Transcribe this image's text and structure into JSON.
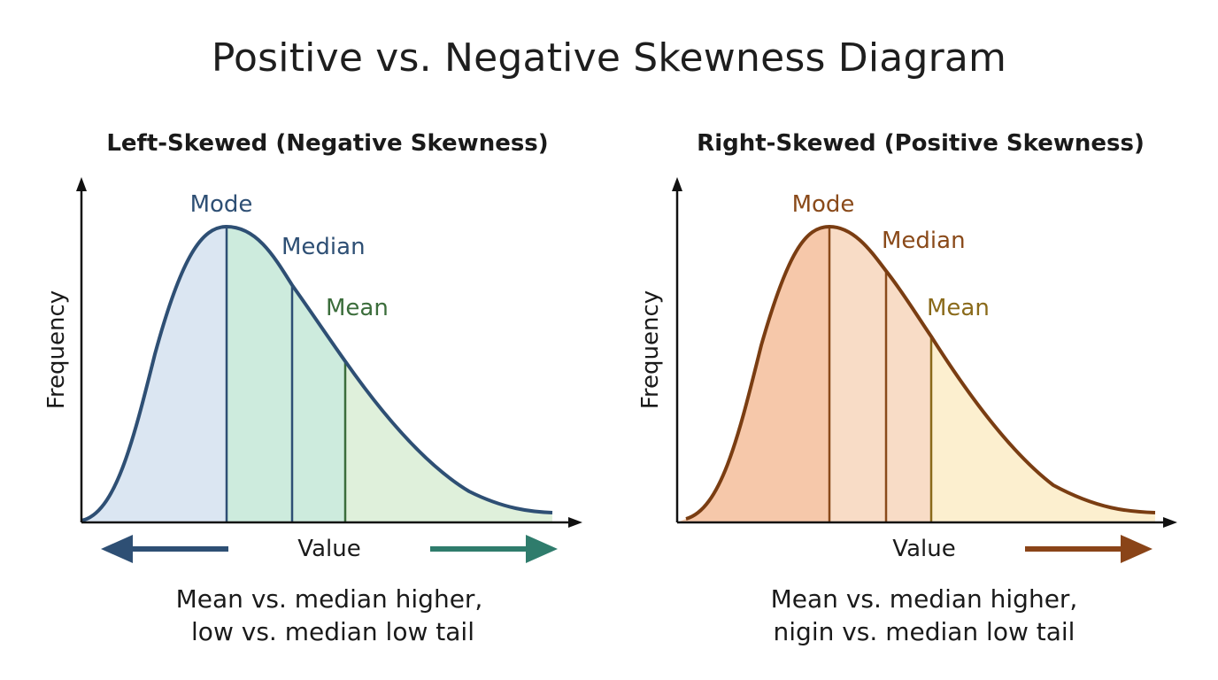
{
  "title": "Positive vs. Negative Skewness Diagram",
  "colors": {
    "left_curve": "#2e4f74",
    "left_fill_a": "#dbe6f2",
    "left_fill_b": "#cdebdd",
    "left_fill_c": "#dff0db",
    "left_mode": "#2e4f74",
    "left_median": "#2e4f74",
    "left_mean": "#3b6d3b",
    "left_arrow_left": "#2e4f74",
    "left_arrow_right": "#2f7c6c",
    "right_curve": "#7a3d12",
    "right_fill_a": "#f6c8aa",
    "right_fill_b": "#f8dcc6",
    "right_fill_c": "#fcefcf",
    "right_mode": "#8a4a1a",
    "right_median": "#8a4a1a",
    "right_mean": "#8a6a1a",
    "right_arrow": "#8a4418",
    "axis": "#111111"
  },
  "panels": [
    {
      "title": "Left-Skewed (Negative Skewness)",
      "ylabel": "Frequency",
      "xlabel": "Value",
      "labels": {
        "mode": "Mode",
        "median": "Median",
        "mean": "Mean"
      },
      "caption": [
        "Mean vs. median higher,",
        "low vs.  median low tail"
      ],
      "arrows": [
        "left",
        "right"
      ]
    },
    {
      "title": "Right-Skewed (Positive Skewness)",
      "ylabel": "Frequency",
      "xlabel": "Value",
      "labels": {
        "mode": "Mode",
        "median": "Median",
        "mean": "Mean"
      },
      "caption": [
        "Mean vs. median higher,",
        "nigin vs. median low tail"
      ],
      "arrows": [
        "right"
      ]
    }
  ]
}
